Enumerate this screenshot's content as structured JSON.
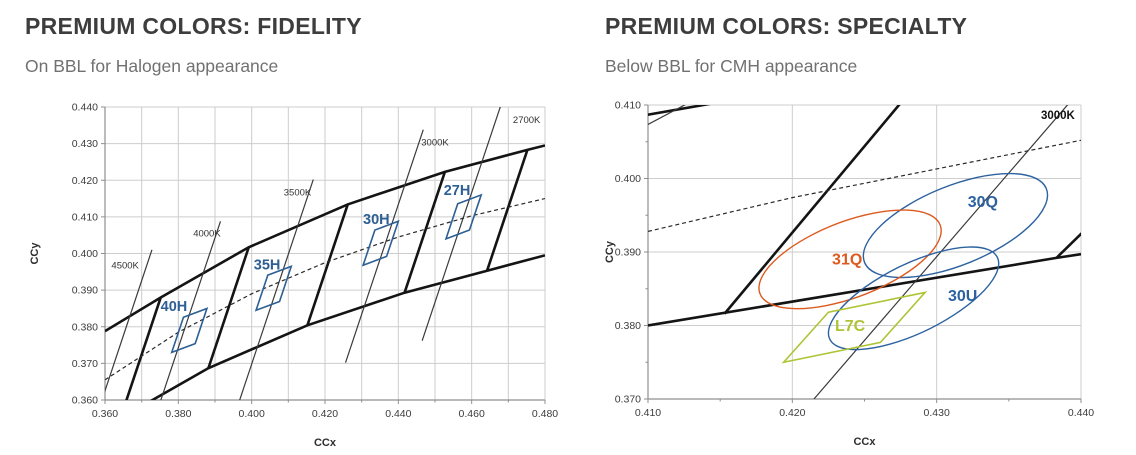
{
  "page": {
    "background": "#ffffff"
  },
  "colors": {
    "blue": "#2d5f94",
    "orange": "#dd5a1e",
    "green": "#aec434",
    "grid": "#cdcdcd",
    "axis": "#8f8f8f",
    "tick_text": "#3c3c3c",
    "thick_line": "#141414",
    "thin_line": "#3a3a3a",
    "title": "#3d3d3d",
    "subtitle": "#717171"
  },
  "chart_data": [
    {
      "id": "fidelity",
      "type": "line",
      "title": "PREMIUM COLORS: FIDELITY",
      "subtitle": "On BBL for Halogen appearance",
      "xlabel": "CCx",
      "ylabel": "CCy",
      "xlim": [
        0.36,
        0.48
      ],
      "ylim": [
        0.36,
        0.44
      ],
      "x_tick_step": 0.02,
      "x_minor_step": 0.01,
      "y_tick_step": 0.01,
      "grid_step": 0.01,
      "tick_decimals": 3,
      "grid": true,
      "bbl_dashed": [
        [
          0.36,
          0.3655
        ],
        [
          0.38,
          0.3785
        ],
        [
          0.4,
          0.389
        ],
        [
          0.42,
          0.3975
        ],
        [
          0.44,
          0.4045
        ],
        [
          0.46,
          0.4103
        ],
        [
          0.48,
          0.415
        ]
      ],
      "isotherms": [
        {
          "label": "4500K",
          "seg": [
            [
              0.3545,
              0.346
            ],
            [
              0.3728,
              0.401
            ]
          ],
          "label_pos": [
            0.3655,
            0.3968
          ],
          "bold": false
        },
        {
          "label": "4000K",
          "seg": [
            [
              0.3705,
              0.3458
            ],
            [
              0.3915,
              0.4088
            ]
          ],
          "label_pos": [
            0.3878,
            0.4056
          ],
          "bold": false
        },
        {
          "label": "3500K",
          "seg": [
            [
              0.396,
              0.3578
            ],
            [
              0.4168,
              0.4202
            ]
          ],
          "label_pos": [
            0.4125,
            0.4168
          ],
          "bold": false
        },
        {
          "label": "3000K",
          "seg": [
            [
              0.4256,
              0.3702
            ],
            [
              0.4468,
              0.4338
            ]
          ],
          "label_pos": [
            0.45,
            0.4305
          ],
          "bold": false
        },
        {
          "label": "2700K",
          "seg": [
            [
              0.4465,
              0.3762
            ],
            [
              0.4682,
              0.4412
            ]
          ],
          "label_pos": [
            0.475,
            0.4366
          ],
          "bold": false
        }
      ],
      "bin_band": {
        "top": [
          [
            0.36,
            0.3788
          ],
          [
            0.3752,
            0.388
          ],
          [
            0.3992,
            0.4017
          ],
          [
            0.4262,
            0.4134
          ],
          [
            0.4527,
            0.4223
          ],
          [
            0.4752,
            0.4283
          ],
          [
            0.48,
            0.4295
          ]
        ],
        "bottom": [
          [
            0.356,
            0.35
          ],
          [
            0.3642,
            0.355
          ],
          [
            0.3882,
            0.3687
          ],
          [
            0.4152,
            0.3804
          ],
          [
            0.4417,
            0.3893
          ],
          [
            0.4642,
            0.3953
          ],
          [
            0.48,
            0.3995
          ]
        ],
        "dividers": [
          [
            [
              0.3642,
              0.355
            ],
            [
              0.3752,
              0.388
            ]
          ],
          [
            [
              0.3882,
              0.3687
            ],
            [
              0.3992,
              0.4017
            ]
          ],
          [
            [
              0.4152,
              0.3804
            ],
            [
              0.4262,
              0.4134
            ]
          ],
          [
            [
              0.4417,
              0.3893
            ],
            [
              0.4527,
              0.4223
            ]
          ],
          [
            [
              0.4642,
              0.3953
            ],
            [
              0.4752,
              0.4283
            ]
          ]
        ]
      },
      "products": [
        {
          "label": "40H",
          "shape": "polygon",
          "color": "#2d5f94",
          "points": [
            [
              0.3782,
              0.373
            ],
            [
              0.3846,
              0.3754
            ],
            [
              0.3878,
              0.385
            ],
            [
              0.3814,
              0.3826
            ]
          ],
          "label_pos": [
            0.3788,
            0.3856
          ]
        },
        {
          "label": "35H",
          "shape": "polygon",
          "color": "#2d5f94",
          "points": [
            [
              0.4012,
              0.3845
            ],
            [
              0.4076,
              0.3869
            ],
            [
              0.4108,
              0.3965
            ],
            [
              0.4044,
              0.3941
            ]
          ],
          "label_pos": [
            0.4042,
            0.397
          ]
        },
        {
          "label": "30H",
          "shape": "polygon",
          "color": "#2d5f94",
          "points": [
            [
              0.4304,
              0.3968
            ],
            [
              0.4368,
              0.3992
            ],
            [
              0.44,
              0.4088
            ],
            [
              0.4336,
              0.4064
            ]
          ],
          "label_pos": [
            0.434,
            0.4094
          ]
        },
        {
          "label": "27H",
          "shape": "polygon",
          "color": "#2d5f94",
          "points": [
            [
              0.453,
              0.404
            ],
            [
              0.4594,
              0.4064
            ],
            [
              0.4626,
              0.416
            ],
            [
              0.4562,
              0.4136
            ]
          ],
          "label_pos": [
            0.456,
            0.4174
          ]
        }
      ]
    },
    {
      "id": "specialty",
      "type": "line",
      "title": "PREMIUM COLORS: SPECIALTY",
      "subtitle": "Below BBL for CMH appearance",
      "xlabel": "CCx",
      "ylabel": "CCy",
      "xlim": [
        0.41,
        0.44
      ],
      "ylim": [
        0.37,
        0.41
      ],
      "x_tick_step": 0.01,
      "x_minor_step": 0.005,
      "y_tick_step": 0.01,
      "y_minor_step": 0.005,
      "grid_step": 0.01,
      "tick_decimals": 3,
      "grid": true,
      "bbl_dashed": [
        [
          0.41,
          0.3928
        ],
        [
          0.42,
          0.3974
        ],
        [
          0.43,
          0.4013
        ],
        [
          0.44,
          0.4052
        ]
      ],
      "isotherms": [
        {
          "label": "3000K",
          "seg": [
            [
              0.4215,
              0.37
            ],
            [
              0.4395,
              0.411
            ]
          ],
          "label_pos": [
            0.4384,
            0.4086
          ],
          "bold": true
        },
        {
          "label": "",
          "seg": [
            [
              0.4085,
              0.4058
            ],
            [
              0.4135,
              0.411
            ]
          ],
          "label_pos": null,
          "bold": false
        }
      ],
      "thick_segments": [
        [
          [
            0.41,
            0.38
          ],
          [
            0.4383,
            0.3892
          ],
          [
            0.44,
            0.3897
          ]
        ],
        [
          [
            0.4153,
            0.3816
          ],
          [
            0.4279,
            0.4112
          ]
        ],
        [
          [
            0.4383,
            0.3892
          ],
          [
            0.4408,
            0.394
          ]
        ],
        [
          [
            0.408,
            0.408
          ],
          [
            0.415,
            0.4104
          ]
        ]
      ],
      "products": [
        {
          "label": "30Q",
          "shape": "ellipse",
          "color": "#2d62a0",
          "center": [
            0.4313,
            0.3936
          ],
          "a": 0.0085,
          "b": 0.0043,
          "rot_deg": 50,
          "label_pos": [
            0.4332,
            0.3968
          ]
        },
        {
          "label": "31Q",
          "shape": "ellipse",
          "color": "#dd5a1e",
          "center": [
            0.424,
            0.389
          ],
          "a": 0.0082,
          "b": 0.0042,
          "rot_deg": 48,
          "label_pos": [
            0.4238,
            0.389
          ]
        },
        {
          "label": "30U",
          "shape": "ellipse",
          "color": "#2d62a0",
          "center": [
            0.4284,
            0.3837
          ],
          "a": 0.0084,
          "b": 0.0036,
          "rot_deg": 52,
          "label_pos": [
            0.4318,
            0.384
          ]
        },
        {
          "label": "L7C",
          "shape": "polygon",
          "color": "#aec434",
          "points": [
            [
              0.4194,
              0.375
            ],
            [
              0.4225,
              0.3818
            ],
            [
              0.4292,
              0.3845
            ],
            [
              0.4261,
              0.3777
            ]
          ],
          "label_pos": [
            0.424,
            0.3799
          ]
        }
      ]
    }
  ]
}
